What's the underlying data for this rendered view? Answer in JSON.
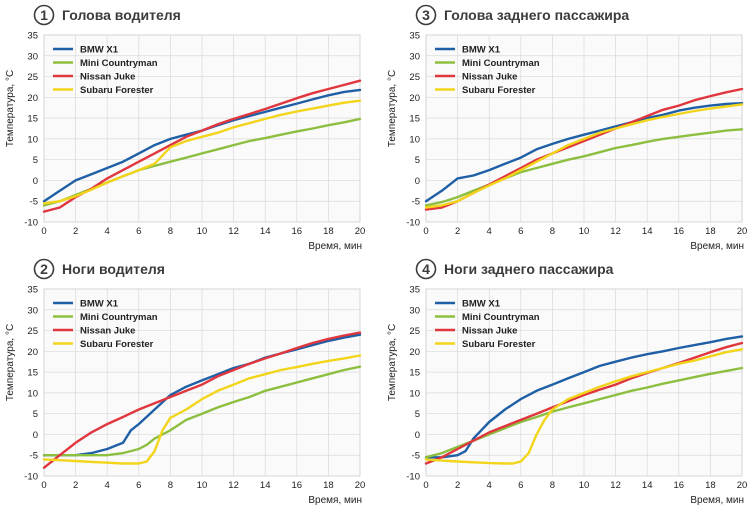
{
  "colors": {
    "bmw": "#1f5fa6",
    "mini": "#8cbf3f",
    "nissan": "#e0363e",
    "subaru": "#f2d51b",
    "grid": "#d9d9d9",
    "panel_bg": "#fafafa",
    "badge": "#3c3c3c"
  },
  "legend_position": "top-left",
  "chart_data": [
    {
      "type": "line",
      "number": "1",
      "title": "Голова водителя",
      "xlabel": "Время, мин",
      "ylabel": "Температура, °С",
      "xlim": [
        0,
        20
      ],
      "ylim": [
        -10,
        35
      ],
      "xticks": [
        "0",
        "2",
        "4",
        "6",
        "8",
        "10",
        "12",
        "14",
        "16",
        "18",
        "20"
      ],
      "yticks": [
        "-10",
        "-5",
        "0",
        "5",
        "10",
        "15",
        "20",
        "25",
        "30",
        "35"
      ],
      "grid": true,
      "series": [
        {
          "name": "BMW X1",
          "color_key": "bmw",
          "x": [
            0,
            1,
            2,
            3,
            4,
            5,
            6,
            7,
            8,
            9,
            10,
            11,
            12,
            13,
            14,
            15,
            16,
            17,
            18,
            19,
            20
          ],
          "y": [
            -5,
            -2.5,
            0,
            1.5,
            3,
            4.5,
            6.5,
            8.5,
            10,
            11,
            12,
            13.3,
            14.5,
            15.5,
            16.5,
            17.5,
            18.5,
            19.5,
            20.5,
            21.3,
            21.8
          ]
        },
        {
          "name": "Mini Countryman",
          "color_key": "mini",
          "x": [
            0,
            1,
            2,
            3,
            4,
            5,
            6,
            7,
            8,
            9,
            10,
            11,
            12,
            13,
            14,
            15,
            16,
            17,
            18,
            19,
            20
          ],
          "y": [
            -6,
            -5,
            -3.5,
            -2,
            -0.5,
            1,
            2.5,
            3.5,
            4.5,
            5.5,
            6.5,
            7.5,
            8.5,
            9.5,
            10.2,
            11,
            11.8,
            12.5,
            13.3,
            14,
            14.8
          ]
        },
        {
          "name": "Nissan Juke",
          "color_key": "nissan",
          "x": [
            0,
            1,
            2,
            3,
            4,
            5,
            6,
            7,
            8,
            9,
            10,
            11,
            12,
            13,
            14,
            15,
            16,
            17,
            18,
            19,
            20
          ],
          "y": [
            -7.5,
            -6.5,
            -4,
            -2,
            0.5,
            2.5,
            4.5,
            6.5,
            8.5,
            10.5,
            12,
            13.5,
            14.8,
            16,
            17.2,
            18.5,
            19.8,
            21,
            22,
            23,
            24
          ]
        },
        {
          "name": "Subaru Forester",
          "color_key": "subaru",
          "x": [
            0,
            1,
            2,
            3,
            4,
            5,
            6,
            7,
            8,
            9,
            10,
            11,
            12,
            13,
            14,
            15,
            16,
            17,
            18,
            19,
            20
          ],
          "y": [
            -5.5,
            -5,
            -3.8,
            -2.2,
            -0.5,
            1,
            2.5,
            4,
            8,
            9.5,
            10.5,
            11.5,
            12.8,
            13.8,
            14.8,
            15.8,
            16.6,
            17.3,
            18,
            18.7,
            19.2
          ]
        }
      ]
    },
    {
      "type": "line",
      "number": "3",
      "title": "Голова заднего пассажира",
      "xlabel": "Время, мин",
      "ylabel": "Температура, °С",
      "xlim": [
        0,
        20
      ],
      "ylim": [
        -10,
        35
      ],
      "xticks": [
        "0",
        "2",
        "4",
        "6",
        "8",
        "10",
        "12",
        "14",
        "16",
        "18",
        "20"
      ],
      "yticks": [
        "-10",
        "-5",
        "0",
        "5",
        "10",
        "15",
        "20",
        "25",
        "30",
        "35"
      ],
      "grid": true,
      "series": [
        {
          "name": "BMW X1",
          "color_key": "bmw",
          "x": [
            0,
            1,
            2,
            3,
            4,
            5,
            6,
            7,
            8,
            9,
            10,
            11,
            12,
            13,
            14,
            15,
            16,
            17,
            18,
            19,
            20
          ],
          "y": [
            -5,
            -2.5,
            0.5,
            1.2,
            2.5,
            4,
            5.5,
            7.5,
            8.8,
            10,
            11,
            12,
            13,
            14,
            15,
            15.8,
            16.8,
            17.5,
            18,
            18.4,
            18.6
          ]
        },
        {
          "name": "Mini Countryman",
          "color_key": "mini",
          "x": [
            0,
            1,
            2,
            3,
            4,
            5,
            6,
            7,
            8,
            9,
            10,
            11,
            12,
            13,
            14,
            15,
            16,
            17,
            18,
            19,
            20
          ],
          "y": [
            -6,
            -5.2,
            -4,
            -2.5,
            -1,
            0.5,
            2,
            3,
            4,
            5,
            5.8,
            6.8,
            7.8,
            8.5,
            9.3,
            10,
            10.5,
            11,
            11.5,
            12,
            12.3
          ]
        },
        {
          "name": "Nissan Juke",
          "color_key": "nissan",
          "x": [
            0,
            1,
            2,
            3,
            4,
            5,
            6,
            7,
            8,
            9,
            10,
            11,
            12,
            13,
            14,
            15,
            16,
            17,
            18,
            19,
            20
          ],
          "y": [
            -7,
            -6.5,
            -5,
            -3,
            -1,
            1,
            3,
            5,
            6.5,
            8,
            9.5,
            11,
            12.5,
            14,
            15.5,
            17,
            18,
            19.3,
            20.3,
            21.2,
            22
          ]
        },
        {
          "name": "Subaru Forester",
          "color_key": "subaru",
          "x": [
            0,
            1,
            2,
            3,
            4,
            5,
            6,
            7,
            8,
            9,
            10,
            11,
            12,
            13,
            14,
            15,
            16,
            17,
            18,
            19,
            20
          ],
          "y": [
            -6.5,
            -6,
            -5,
            -3,
            -1.2,
            0.5,
            2.5,
            4.5,
            6.5,
            8.5,
            10,
            11.5,
            12.5,
            13.5,
            14.5,
            15.3,
            16,
            16.7,
            17.3,
            17.8,
            18.3
          ]
        }
      ]
    },
    {
      "type": "line",
      "number": "2",
      "title": "Ноги водителя",
      "xlabel": "Время, мин",
      "ylabel": "Температура, °С",
      "xlim": [
        0,
        20
      ],
      "ylim": [
        -10,
        35
      ],
      "xticks": [
        "0",
        "2",
        "4",
        "6",
        "8",
        "10",
        "12",
        "14",
        "16",
        "18",
        "20"
      ],
      "yticks": [
        "-10",
        "-5",
        "0",
        "5",
        "10",
        "15",
        "20",
        "25",
        "30",
        "35"
      ],
      "grid": true,
      "series": [
        {
          "name": "BMW X1",
          "color_key": "bmw",
          "x": [
            0,
            1,
            2,
            3,
            4,
            5,
            5.5,
            6,
            7,
            8,
            9,
            10,
            11,
            12,
            13,
            14,
            15,
            16,
            17,
            18,
            19,
            20
          ],
          "y": [
            -5,
            -5,
            -5,
            -4.5,
            -3.5,
            -2,
            1,
            2.5,
            6,
            9.5,
            11.5,
            13,
            14.5,
            16,
            17,
            18.5,
            19.5,
            20.5,
            21.5,
            22.5,
            23.3,
            24
          ]
        },
        {
          "name": "Mini Countryman",
          "color_key": "mini",
          "x": [
            0,
            1,
            2,
            3,
            4,
            5,
            6,
            6.5,
            7,
            8,
            9,
            10,
            11,
            12,
            13,
            14,
            15,
            16,
            17,
            18,
            19,
            20
          ],
          "y": [
            -5,
            -5,
            -5,
            -5,
            -5,
            -4.5,
            -3.5,
            -2.5,
            -1,
            1,
            3.5,
            5,
            6.5,
            7.8,
            9,
            10.5,
            11.5,
            12.5,
            13.5,
            14.5,
            15.5,
            16.3
          ]
        },
        {
          "name": "Nissan Juke",
          "color_key": "nissan",
          "x": [
            0,
            1,
            2,
            3,
            4,
            5,
            6,
            7,
            8,
            9,
            10,
            11,
            12,
            13,
            14,
            15,
            16,
            17,
            18,
            19,
            20
          ],
          "y": [
            -8,
            -5,
            -2,
            0.5,
            2.5,
            4.2,
            6,
            7.5,
            9,
            10.5,
            12,
            14,
            15.5,
            17,
            18.3,
            19.5,
            20.8,
            22,
            23,
            23.8,
            24.5
          ]
        },
        {
          "name": "Subaru Forester",
          "color_key": "subaru",
          "x": [
            0,
            1,
            2,
            3,
            4,
            5,
            6,
            6.5,
            7,
            7.5,
            8,
            9,
            10,
            11,
            12,
            13,
            14,
            15,
            16,
            17,
            18,
            19,
            20
          ],
          "y": [
            -6,
            -6.2,
            -6.4,
            -6.6,
            -6.8,
            -7,
            -7,
            -6.5,
            -4,
            1,
            4,
            6,
            8.5,
            10.5,
            12,
            13.5,
            14.5,
            15.5,
            16.2,
            17,
            17.7,
            18.3,
            19
          ]
        }
      ]
    },
    {
      "type": "line",
      "number": "4",
      "title": "Ноги заднего пассажира",
      "xlabel": "Время, мин",
      "ylabel": "Температура, °С",
      "xlim": [
        0,
        20
      ],
      "ylim": [
        -10,
        35
      ],
      "xticks": [
        "0",
        "2",
        "4",
        "6",
        "8",
        "10",
        "12",
        "14",
        "16",
        "18",
        "20"
      ],
      "yticks": [
        "-10",
        "-5",
        "0",
        "5",
        "10",
        "15",
        "20",
        "25",
        "30",
        "35"
      ],
      "grid": true,
      "series": [
        {
          "name": "BMW X1",
          "color_key": "bmw",
          "x": [
            0,
            1,
            2,
            2.5,
            3,
            4,
            5,
            6,
            7,
            8,
            9,
            10,
            11,
            12,
            13,
            14,
            15,
            16,
            17,
            18,
            19,
            20
          ],
          "y": [
            -5.5,
            -5.5,
            -5,
            -4,
            -1,
            3,
            6,
            8.5,
            10.5,
            12,
            13.5,
            15,
            16.5,
            17.5,
            18.5,
            19.3,
            20,
            20.8,
            21.5,
            22.2,
            23,
            23.6
          ]
        },
        {
          "name": "Mini Countryman",
          "color_key": "mini",
          "x": [
            0,
            1,
            2,
            3,
            4,
            5,
            6,
            7,
            8,
            9,
            10,
            11,
            12,
            13,
            14,
            15,
            16,
            17,
            18,
            19,
            20
          ],
          "y": [
            -5.5,
            -4.5,
            -3,
            -1.5,
            0,
            1.5,
            3,
            4.2,
            5.5,
            6.5,
            7.5,
            8.5,
            9.5,
            10.5,
            11.3,
            12.2,
            13,
            13.8,
            14.6,
            15.3,
            16
          ]
        },
        {
          "name": "Nissan Juke",
          "color_key": "nissan",
          "x": [
            0,
            1,
            2,
            3,
            4,
            5,
            6,
            7,
            8,
            9,
            10,
            11,
            12,
            13,
            14,
            15,
            16,
            17,
            18,
            19,
            20
          ],
          "y": [
            -7,
            -5.5,
            -3.5,
            -1.5,
            0.5,
            2,
            3.5,
            5,
            6.5,
            8,
            9.5,
            10.8,
            12,
            13.5,
            14.8,
            16,
            17.2,
            18.5,
            19.8,
            21,
            22
          ]
        },
        {
          "name": "Subaru Forester",
          "color_key": "subaru",
          "x": [
            0,
            1,
            2,
            3,
            4,
            5,
            5.5,
            6,
            6.5,
            7,
            7.5,
            8,
            9,
            10,
            11,
            12,
            13,
            14,
            15,
            16,
            17,
            18,
            19,
            20
          ],
          "y": [
            -6,
            -6.3,
            -6.5,
            -6.7,
            -6.9,
            -7,
            -7,
            -6.5,
            -4.5,
            0,
            3.5,
            6,
            8.5,
            10,
            11.5,
            12.8,
            14,
            15,
            16,
            17,
            17.8,
            18.8,
            19.8,
            20.5
          ]
        }
      ]
    }
  ]
}
